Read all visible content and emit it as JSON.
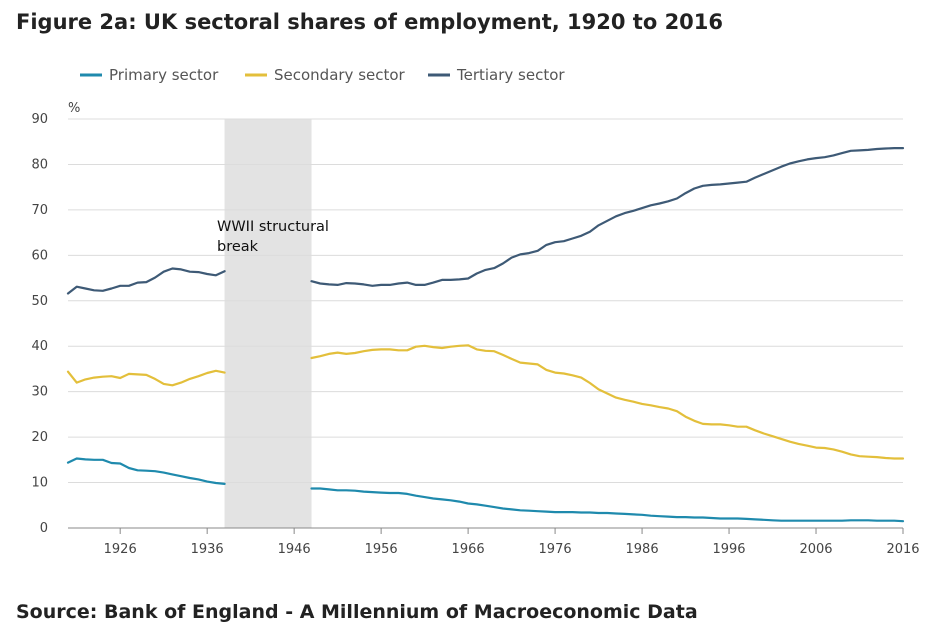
{
  "title": "Figure 2a: UK sectoral shares of employment, 1920 to 2016",
  "source": "Source: Bank of England - A Millennium of Macroeconomic Data",
  "colors": {
    "primary": "#1f8aad",
    "secondary": "#e3bf3b",
    "tertiary": "#3e5a76",
    "band": "#e3e3e3",
    "grid": "#dcdcdc"
  },
  "chart_data": {
    "type": "line",
    "ylabel": "%",
    "xlabel": "",
    "ylim": [
      0,
      90
    ],
    "xlim": [
      1920,
      2016
    ],
    "yticks": [
      0,
      10,
      20,
      30,
      40,
      50,
      60,
      70,
      80,
      90
    ],
    "xticks": [
      1926,
      1936,
      1946,
      1956,
      1966,
      1976,
      1986,
      1996,
      2006,
      2016
    ],
    "grid": true,
    "legend": "top-left",
    "shaded_region": {
      "x_start": 1938,
      "x_end": 1948,
      "label_line1": "WWII structural",
      "label_line2": "break"
    },
    "series": [
      {
        "name": "Primary sector",
        "segments": [
          {
            "x": [
              1920,
              1921,
              1922,
              1923,
              1924,
              1925,
              1926,
              1927,
              1928,
              1929,
              1930,
              1931,
              1932,
              1933,
              1934,
              1935,
              1936,
              1937,
              1938
            ],
            "y": [
              14.4,
              15.3,
              15.1,
              15.0,
              15.0,
              14.3,
              14.2,
              13.2,
              12.7,
              12.6,
              12.5,
              12.2,
              11.8,
              11.4,
              11.0,
              10.7,
              10.2,
              9.9,
              9.7
            ]
          },
          {
            "x": [
              1948,
              1949,
              1950,
              1951,
              1952,
              1953,
              1954,
              1955,
              1956,
              1957,
              1958,
              1959,
              1960,
              1961,
              1962,
              1963,
              1964,
              1965,
              1966,
              1967,
              1968,
              1969,
              1970,
              1971,
              1972,
              1973,
              1974,
              1975,
              1976,
              1977,
              1978,
              1979,
              1980,
              1981,
              1982,
              1983,
              1984,
              1985,
              1986,
              1987,
              1988,
              1989,
              1990,
              1991,
              1992,
              1993,
              1994,
              1995,
              1996,
              1997,
              1998,
              1999,
              2000,
              2001,
              2002,
              2003,
              2004,
              2005,
              2006,
              2007,
              2008,
              2009,
              2010,
              2011,
              2012,
              2013,
              2014,
              2015,
              2016
            ],
            "y": [
              8.7,
              8.7,
              8.5,
              8.3,
              8.3,
              8.2,
              8.0,
              7.9,
              7.8,
              7.7,
              7.7,
              7.5,
              7.1,
              6.8,
              6.5,
              6.3,
              6.1,
              5.8,
              5.4,
              5.2,
              4.9,
              4.6,
              4.3,
              4.1,
              3.9,
              3.8,
              3.7,
              3.6,
              3.5,
              3.5,
              3.5,
              3.4,
              3.4,
              3.3,
              3.3,
              3.2,
              3.1,
              3.0,
              2.9,
              2.7,
              2.6,
              2.5,
              2.4,
              2.4,
              2.3,
              2.3,
              2.2,
              2.1,
              2.1,
              2.1,
              2.0,
              1.9,
              1.8,
              1.7,
              1.6,
              1.6,
              1.6,
              1.6,
              1.6,
              1.6,
              1.6,
              1.6,
              1.7,
              1.7,
              1.7,
              1.6,
              1.6,
              1.6,
              1.5
            ]
          }
        ]
      },
      {
        "name": "Secondary sector",
        "segments": [
          {
            "x": [
              1920,
              1921,
              1922,
              1923,
              1924,
              1925,
              1926,
              1927,
              1928,
              1929,
              1930,
              1931,
              1932,
              1933,
              1934,
              1935,
              1936,
              1937,
              1938
            ],
            "y": [
              34.4,
              32.0,
              32.7,
              33.1,
              33.3,
              33.4,
              33.0,
              33.9,
              33.8,
              33.7,
              32.8,
              31.7,
              31.4,
              32.0,
              32.8,
              33.4,
              34.1,
              34.6,
              34.2
            ]
          },
          {
            "x": [
              1948,
              1949,
              1950,
              1951,
              1952,
              1953,
              1954,
              1955,
              1956,
              1957,
              1958,
              1959,
              1960,
              1961,
              1962,
              1963,
              1964,
              1965,
              1966,
              1967,
              1968,
              1969,
              1970,
              1971,
              1972,
              1973,
              1974,
              1975,
              1976,
              1977,
              1978,
              1979,
              1980,
              1981,
              1982,
              1983,
              1984,
              1985,
              1986,
              1987,
              1988,
              1989,
              1990,
              1991,
              1992,
              1993,
              1994,
              1995,
              1996,
              1997,
              1998,
              1999,
              2000,
              2001,
              2002,
              2003,
              2004,
              2005,
              2006,
              2007,
              2008,
              2009,
              2010,
              2011,
              2012,
              2013,
              2014,
              2015,
              2016
            ],
            "y": [
              37.4,
              37.8,
              38.3,
              38.6,
              38.3,
              38.5,
              38.9,
              39.2,
              39.3,
              39.3,
              39.1,
              39.1,
              39.9,
              40.1,
              39.8,
              39.6,
              39.9,
              40.1,
              40.2,
              39.3,
              39.0,
              38.9,
              38.1,
              37.2,
              36.4,
              36.2,
              36.0,
              34.8,
              34.2,
              34.0,
              33.6,
              33.1,
              31.9,
              30.5,
              29.6,
              28.7,
              28.2,
              27.8,
              27.3,
              27.0,
              26.6,
              26.3,
              25.7,
              24.5,
              23.6,
              22.9,
              22.8,
              22.8,
              22.6,
              22.3,
              22.3,
              21.5,
              20.8,
              20.2,
              19.6,
              19.0,
              18.5,
              18.1,
              17.7,
              17.6,
              17.3,
              16.8,
              16.2,
              15.8,
              15.7,
              15.6,
              15.4,
              15.3,
              15.3
            ]
          }
        ]
      },
      {
        "name": "Tertiary sector",
        "segments": [
          {
            "x": [
              1920,
              1921,
              1922,
              1923,
              1924,
              1925,
              1926,
              1927,
              1928,
              1929,
              1930,
              1931,
              1932,
              1933,
              1934,
              1935,
              1936,
              1937,
              1938
            ],
            "y": [
              51.6,
              53.1,
              52.7,
              52.3,
              52.2,
              52.7,
              53.3,
              53.3,
              54.0,
              54.1,
              55.1,
              56.4,
              57.1,
              56.9,
              56.4,
              56.3,
              55.9,
              55.6,
              56.5
            ]
          },
          {
            "x": [
              1948,
              1949,
              1950,
              1951,
              1952,
              1953,
              1954,
              1955,
              1956,
              1957,
              1958,
              1959,
              1960,
              1961,
              1962,
              1963,
              1964,
              1965,
              1966,
              1967,
              1968,
              1969,
              1970,
              1971,
              1972,
              1973,
              1974,
              1975,
              1976,
              1977,
              1978,
              1979,
              1980,
              1981,
              1982,
              1983,
              1984,
              1985,
              1986,
              1987,
              1988,
              1989,
              1990,
              1991,
              1992,
              1993,
              1994,
              1995,
              1996,
              1997,
              1998,
              1999,
              2000,
              2001,
              2002,
              2003,
              2004,
              2005,
              2006,
              2007,
              2008,
              2009,
              2010,
              2011,
              2012,
              2013,
              2014,
              2015,
              2016
            ],
            "y": [
              54.3,
              53.8,
              53.6,
              53.5,
              53.9,
              53.8,
              53.6,
              53.3,
              53.5,
              53.5,
              53.8,
              54.0,
              53.5,
              53.5,
              54.0,
              54.6,
              54.6,
              54.7,
              54.9,
              56.0,
              56.8,
              57.2,
              58.2,
              59.5,
              60.2,
              60.5,
              61.0,
              62.3,
              62.9,
              63.1,
              63.7,
              64.3,
              65.2,
              66.6,
              67.6,
              68.6,
              69.3,
              69.8,
              70.4,
              71.0,
              71.4,
              71.9,
              72.5,
              73.7,
              74.7,
              75.3,
              75.5,
              75.6,
              75.8,
              76.0,
              76.2,
              77.1,
              77.9,
              78.7,
              79.5,
              80.2,
              80.7,
              81.1,
              81.4,
              81.6,
              82.0,
              82.5,
              83.0,
              83.1,
              83.2,
              83.4,
              83.5,
              83.6,
              83.6
            ]
          }
        ]
      }
    ]
  }
}
